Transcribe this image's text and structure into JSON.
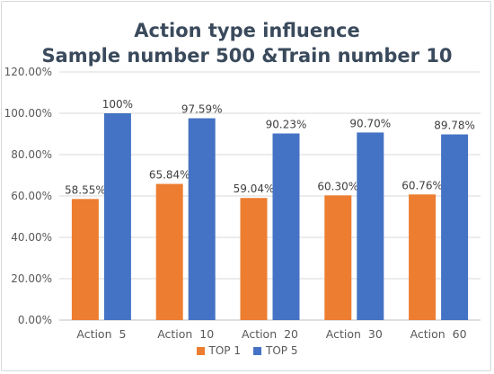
{
  "chart_data": {
    "type": "bar",
    "title_lines": [
      "Action type influence",
      "Sample number 500 &Train number 10"
    ],
    "categories": [
      "Action  5",
      "Action  10",
      "Action  20",
      "Action  30",
      "Action  60"
    ],
    "series": [
      {
        "name": "TOP 1",
        "color": "#ed7d31",
        "values": [
          58.55,
          65.84,
          59.04,
          60.3,
          60.76
        ],
        "labels": [
          "58.55%",
          "65.84%",
          "59.04%",
          "60.30%",
          "60.76%"
        ]
      },
      {
        "name": "TOP 5",
        "color": "#4472c4",
        "values": [
          100,
          97.59,
          90.23,
          90.7,
          89.78
        ],
        "labels": [
          "100%",
          "97.59%",
          "90.23%",
          "90.70%",
          "89.78%"
        ]
      }
    ],
    "ylim": [
      0,
      120
    ],
    "yticks": [
      "0.00%",
      "20.00%",
      "40.00%",
      "60.00%",
      "80.00%",
      "100.00%",
      "120.00%"
    ],
    "grid": true,
    "legend_position": "bottom"
  }
}
